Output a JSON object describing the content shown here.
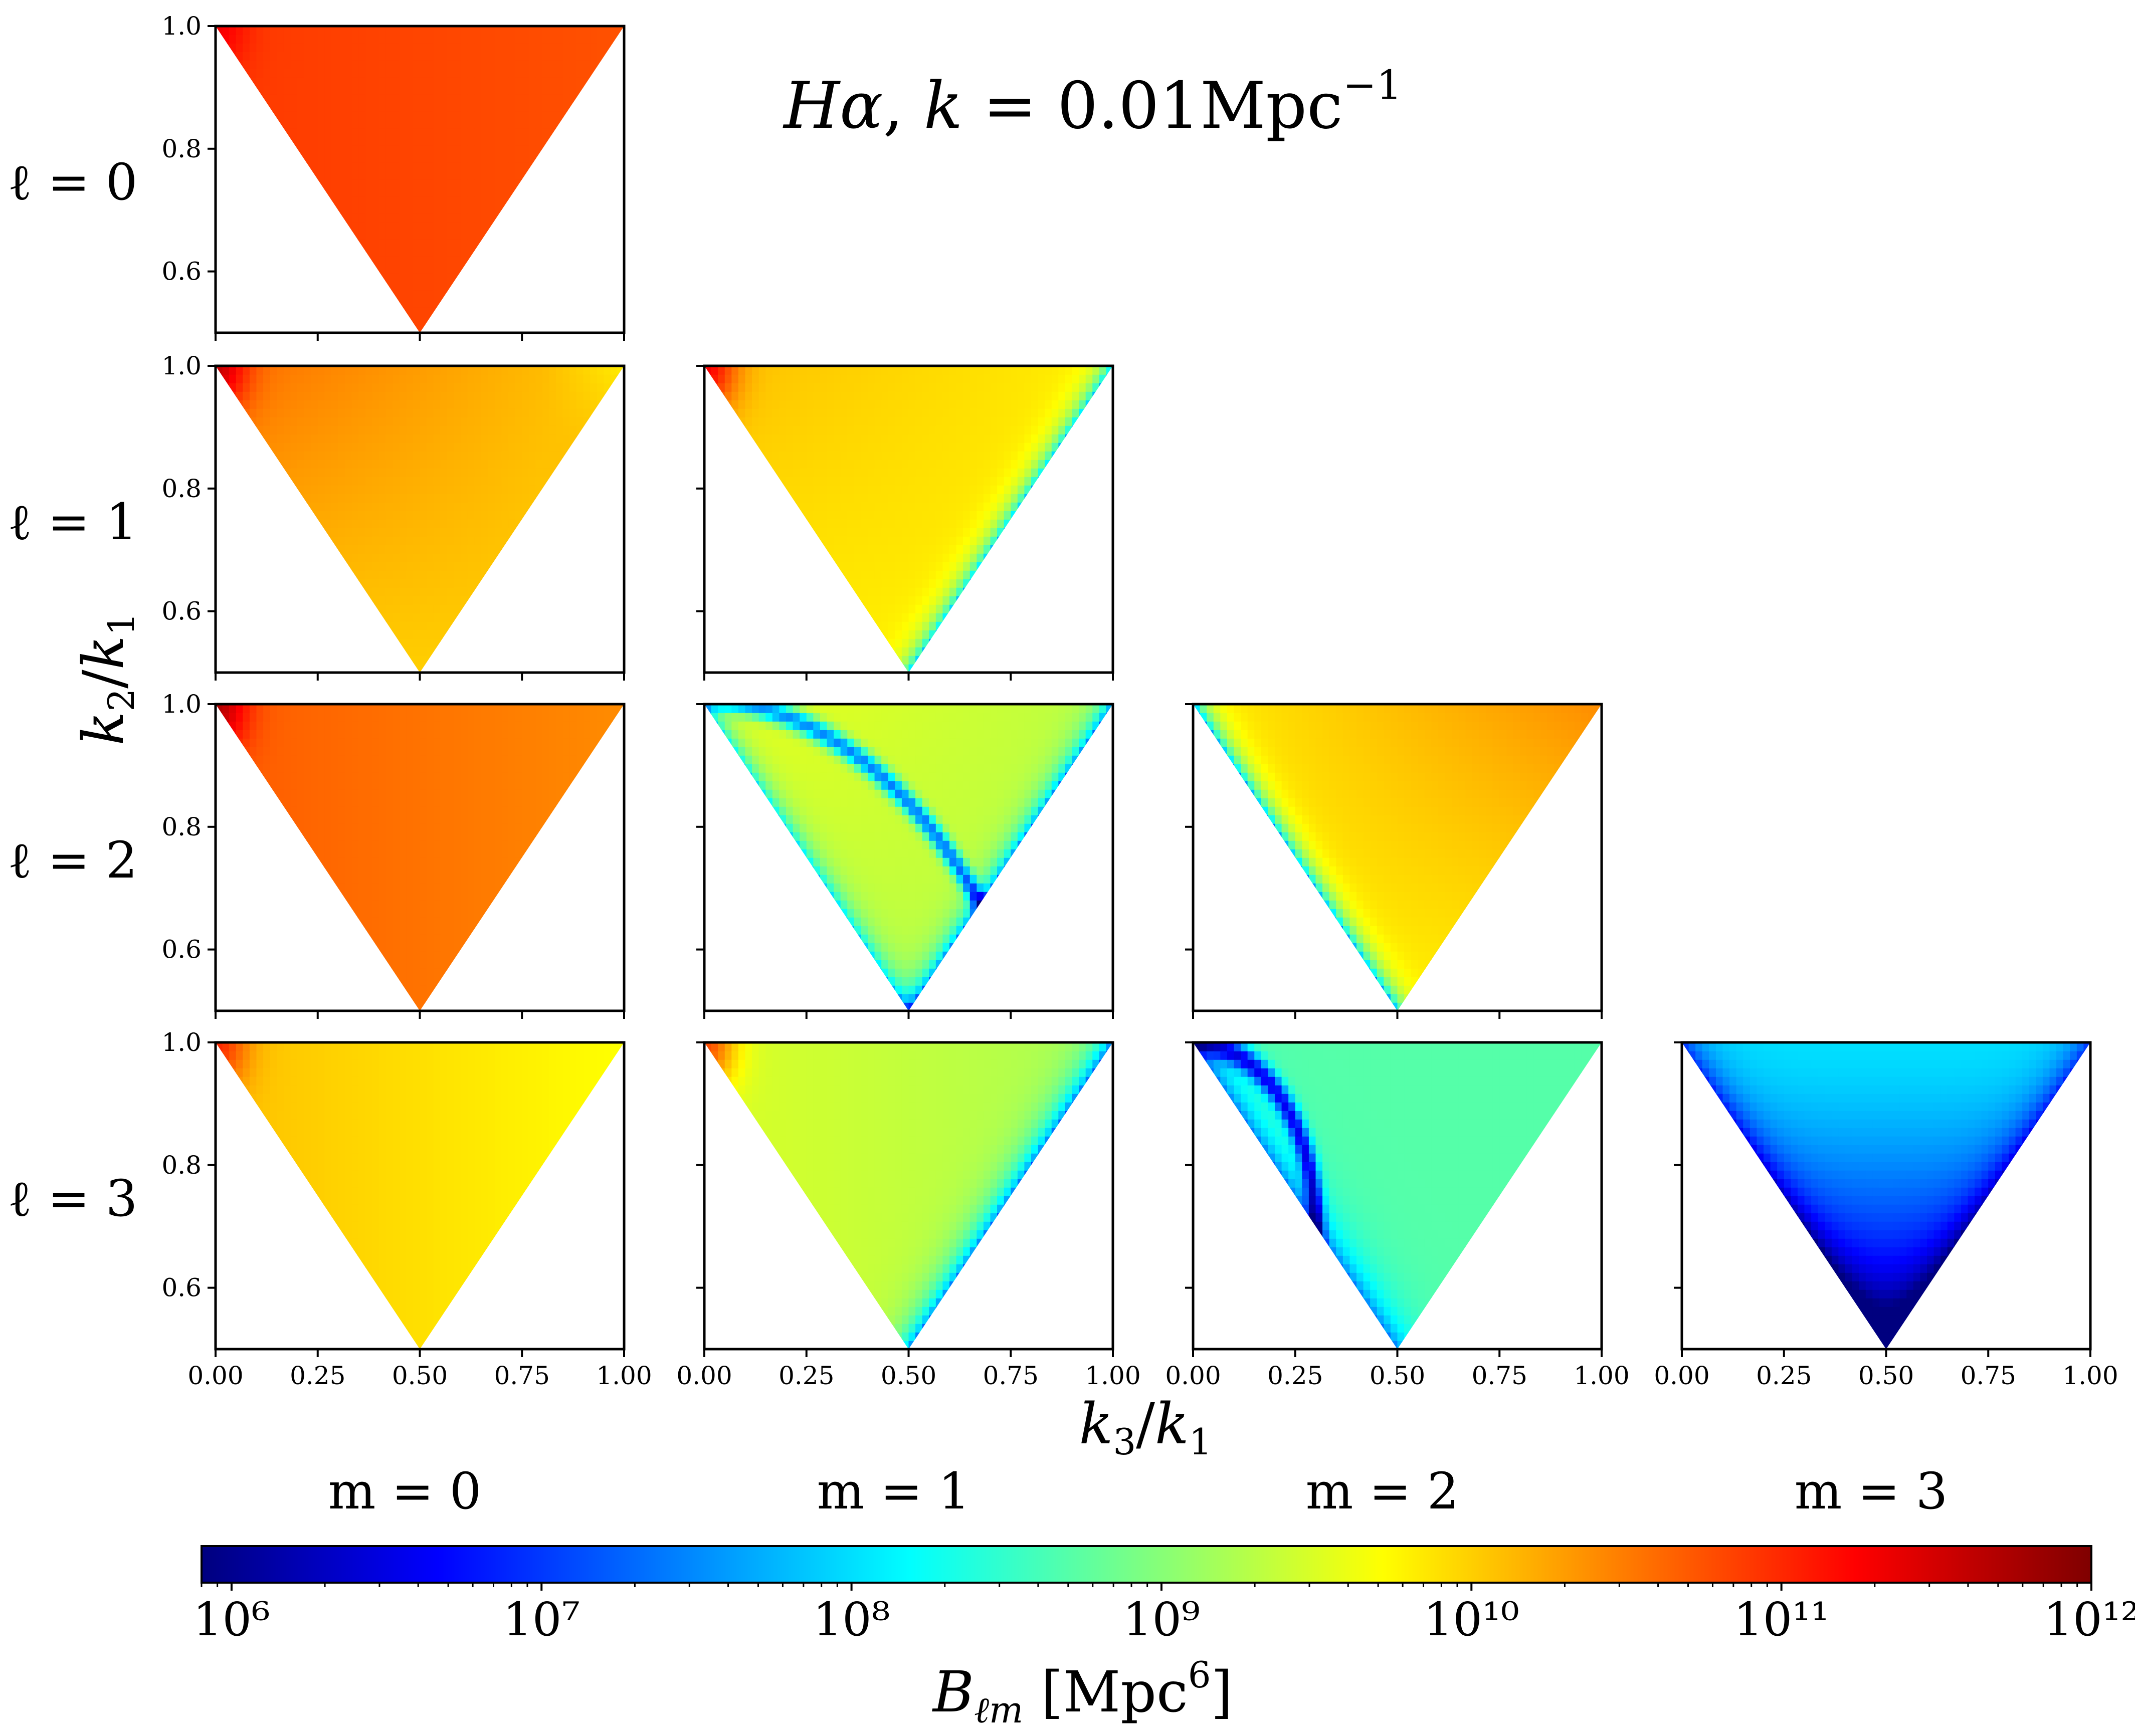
{
  "figure": {
    "title": "Hα, k = 0.01Mpc⁻¹",
    "xlabel": "k₃/k₁",
    "ylabel": "k₂/k₁"
  },
  "colormap": {
    "name": "jet",
    "stops": [
      "#00007f",
      "#0000ff",
      "#007fff",
      "#00ffff",
      "#7fff7f",
      "#ffff00",
      "#ff7f00",
      "#ff0000",
      "#7f0000"
    ]
  },
  "chart_data": {
    "type": "heatmap",
    "description_axes": {
      "x_ticks": [
        "0.00",
        "0.25",
        "0.50",
        "0.75",
        "1.00"
      ],
      "y_ticks": [
        "0.6",
        "0.8",
        "1.0"
      ],
      "xlim": [
        0,
        1
      ],
      "ylim": [
        0.5,
        1.0
      ]
    },
    "row_labels": [
      "ℓ = 0",
      "ℓ = 1",
      "ℓ = 2",
      "ℓ = 3"
    ],
    "col_labels": [
      "m = 0",
      "m = 1",
      "m = 2",
      "m = 3"
    ],
    "panels": [
      {
        "l": 0,
        "m": 0,
        "log10_B_typical": 10.9,
        "hotspot": "corner-k3-0"
      },
      {
        "l": 1,
        "m": 0,
        "log10_B_typical": 10.0,
        "hotspot": "corner-k3-0"
      },
      {
        "l": 1,
        "m": 1,
        "log10_B_typical": 9.8,
        "hotspot": "corner-k3-0"
      },
      {
        "l": 2,
        "m": 0,
        "log10_B_typical": 10.4,
        "hotspot": "corner-k3-0"
      },
      {
        "l": 2,
        "m": 1,
        "log10_B_typical": 9.3,
        "feature": "blue arc (sign change)"
      },
      {
        "l": 2,
        "m": 2,
        "log10_B_typical": 9.8
      },
      {
        "l": 3,
        "m": 0,
        "log10_B_typical": 9.7,
        "hotspot": "corner-k3-0"
      },
      {
        "l": 3,
        "m": 1,
        "log10_B_typical": 9.2,
        "hotspot": "corner-k3-0"
      },
      {
        "l": 3,
        "m": 2,
        "log10_B_typical": 8.7,
        "feature": "blue arc near left edge"
      },
      {
        "l": 3,
        "m": 3,
        "log10_B_typical": 8.0,
        "feature": "dark blue toward bottom vertex"
      }
    ],
    "colorbar": {
      "label": "B_ℓm [Mpc⁶]",
      "scale": "log",
      "range": [
        800000,
        1000000000000
      ],
      "tick_labels": [
        "10⁶",
        "10⁷",
        "10⁸",
        "10⁹",
        "10¹⁰",
        "10¹¹",
        "10¹²"
      ]
    }
  }
}
